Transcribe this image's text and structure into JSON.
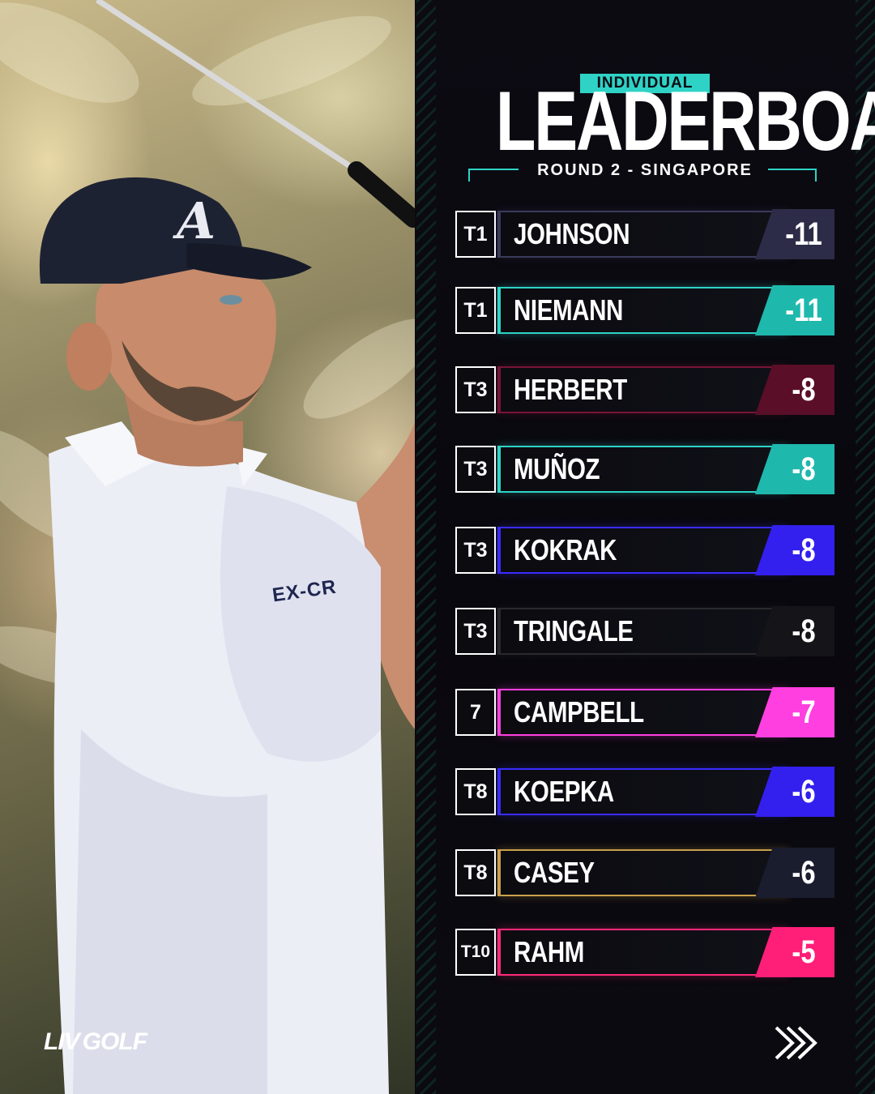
{
  "header": {
    "badge": "INDIVIDUAL",
    "title": "LEADERBOARD",
    "subtitle": "ROUND 2 - SINGAPORE"
  },
  "photo": {
    "shirt_text": "EX-CR",
    "cap_logo": "A"
  },
  "rows": [
    {
      "rank": "T1",
      "name": "JOHNSON",
      "score": "-11",
      "accent": "#3b3b5c",
      "score_bg": "#2c2c48"
    },
    {
      "rank": "T1",
      "name": "NIEMANN",
      "score": "-11",
      "accent": "#2ed3c6",
      "score_bg": "#1fb8ad"
    },
    {
      "rank": "T3",
      "name": "HERBERT",
      "score": "-8",
      "accent": "#7a1436",
      "score_bg": "#5a0e28"
    },
    {
      "rank": "T3",
      "name": "MUÑOZ",
      "score": "-8",
      "accent": "#2ed3c6",
      "score_bg": "#1fb8ad"
    },
    {
      "rank": "T3",
      "name": "KOKRAK",
      "score": "-8",
      "accent": "#3a2cff",
      "score_bg": "#3320ee"
    },
    {
      "rank": "T3",
      "name": "TRINGALE",
      "score": "-8",
      "accent": "#2a2a2e",
      "score_bg": "#151519"
    },
    {
      "rank": "7",
      "name": "CAMPBELL",
      "score": "-7",
      "accent": "#ff3fe0",
      "score_bg": "#ff3fe0"
    },
    {
      "rank": "T8",
      "name": "KOEPKA",
      "score": "-6",
      "accent": "#3a2cff",
      "score_bg": "#3320ee"
    },
    {
      "rank": "T8",
      "name": "CASEY",
      "score": "-6",
      "accent": "#c9a04a",
      "score_bg": "#1a1d2e"
    },
    {
      "rank": "T10",
      "name": "RAHM",
      "score": "-5",
      "accent": "#ff2a7a",
      "score_bg": "#ff1f78"
    }
  ],
  "footer": {
    "logo_liv": "LIV",
    "logo_golf": "GOLF"
  }
}
